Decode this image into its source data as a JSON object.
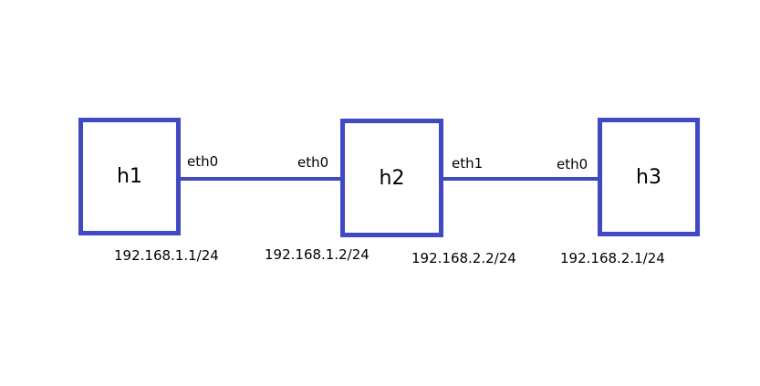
{
  "diagram": {
    "hosts": [
      {
        "id": "h1",
        "label": "h1"
      },
      {
        "id": "h2",
        "label": "h2"
      },
      {
        "id": "h3",
        "label": "h3"
      }
    ],
    "links": [
      {
        "from": "h1",
        "to": "h2",
        "from_iface": "eth0",
        "to_iface": "eth0"
      },
      {
        "from": "h2",
        "to": "h3",
        "from_iface": "eth1",
        "to_iface": "eth0"
      }
    ],
    "addresses": [
      "192.168.1.1/24",
      "192.168.1.2/24",
      "192.168.2.2/24",
      "192.168.2.1/24"
    ],
    "colors": {
      "line": "#3f48cc",
      "text": "#000000",
      "background": "#ffffff"
    }
  }
}
